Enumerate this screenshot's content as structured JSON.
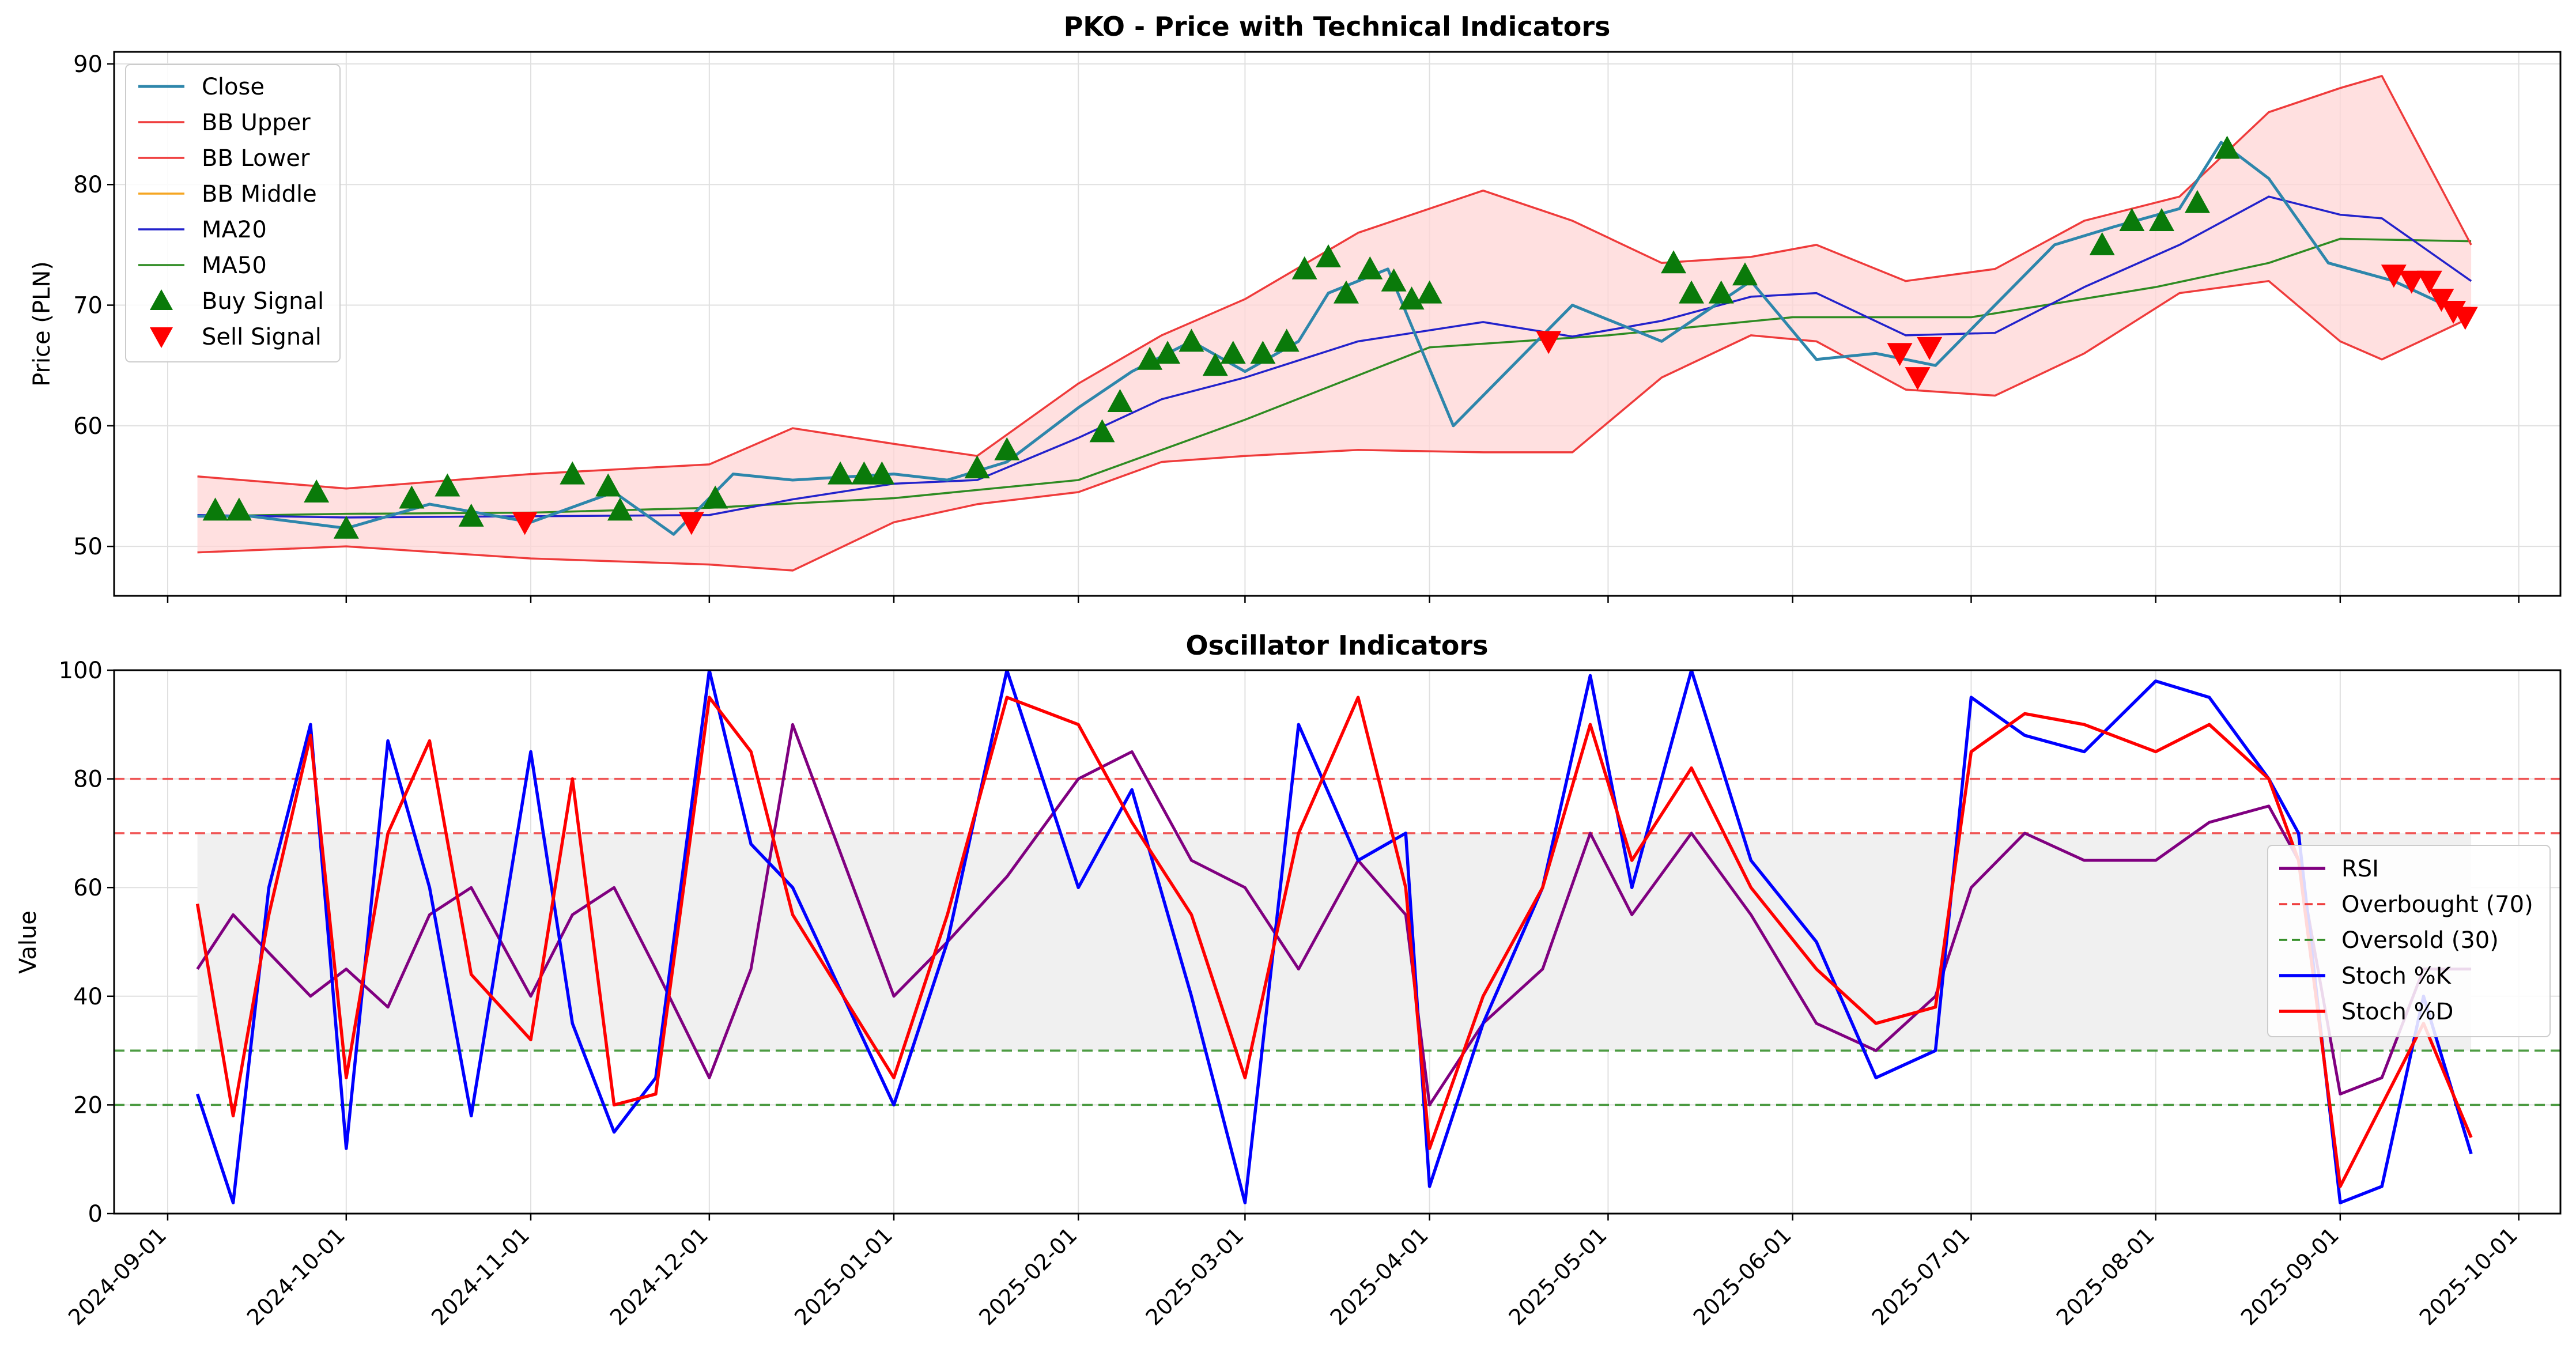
{
  "chart_data": [
    {
      "type": "line",
      "title": "PKO - Price with Technical Indicators",
      "xlabel": "",
      "ylabel": "Price (PLN)",
      "ylim": [
        45.9,
        91.0
      ],
      "yticks": [
        50,
        60,
        70,
        80,
        90
      ],
      "xlim": [
        "2024-08-23",
        "2025-10-08"
      ],
      "xticks": [
        "2024-09-01",
        "2024-10-01",
        "2024-11-01",
        "2024-12-01",
        "2025-01-01",
        "2025-02-01",
        "2025-03-01",
        "2025-04-01",
        "2025-05-01",
        "2025-06-01",
        "2025-07-01",
        "2025-08-01",
        "2025-09-01",
        "2025-10-01"
      ],
      "grid": true,
      "legend_position": "upper left",
      "series_style": {
        "Close": {
          "color": "#2e86ab"
        },
        "BB Upper": {
          "color": "#ef3b3b"
        },
        "BB Lower": {
          "color": "#ef3b3b"
        },
        "BB Middle": {
          "color": "#f5a623"
        },
        "MA20": {
          "color": "#2222cc"
        },
        "MA50": {
          "color": "#2e8b22"
        },
        "Buy Signal": {
          "color": "#0a7a0a"
        },
        "Sell Signal": {
          "color": "#ff0000"
        },
        "Band Fill": {
          "color": "#ffd6d6"
        }
      },
      "legend": [
        "Close",
        "BB Upper",
        "BB Lower",
        "BB Middle",
        "MA20",
        "MA50",
        "Buy Signal",
        "Sell Signal"
      ],
      "series": [
        {
          "name": "Close",
          "x": [
            "2024-09-06",
            "2024-09-15",
            "2024-10-01",
            "2024-10-15",
            "2024-11-01",
            "2024-11-15",
            "2024-11-25",
            "2024-12-05",
            "2024-12-15",
            "2025-01-01",
            "2025-01-10",
            "2025-01-20",
            "2025-02-01",
            "2025-02-10",
            "2025-02-20",
            "2025-03-01",
            "2025-03-10",
            "2025-03-15",
            "2025-03-25",
            "2025-04-05",
            "2025-04-15",
            "2025-04-25",
            "2025-05-10",
            "2025-05-25",
            "2025-06-05",
            "2025-06-15",
            "2025-06-25",
            "2025-07-05",
            "2025-07-15",
            "2025-07-25",
            "2025-08-05",
            "2025-08-12",
            "2025-08-20",
            "2025-08-30",
            "2025-09-10",
            "2025-09-23"
          ],
          "y": [
            52.5,
            52.5,
            51.5,
            53.5,
            52.0,
            54.5,
            51.0,
            56.0,
            55.5,
            56.0,
            55.5,
            57.0,
            61.5,
            64.5,
            67.0,
            64.5,
            67.0,
            71.0,
            73.0,
            60.0,
            65.0,
            70.0,
            67.0,
            72.0,
            65.5,
            66.0,
            65.0,
            70.0,
            75.0,
            76.5,
            78.0,
            83.5,
            80.5,
            73.5,
            72.0,
            69.0
          ]
        },
        {
          "name": "BB Upper",
          "x": [
            "2024-09-06",
            "2024-10-01",
            "2024-11-01",
            "2024-12-01",
            "2024-12-15",
            "2025-01-01",
            "2025-01-15",
            "2025-02-01",
            "2025-02-15",
            "2025-03-01",
            "2025-03-20",
            "2025-04-10",
            "2025-04-25",
            "2025-05-10",
            "2025-05-25",
            "2025-06-05",
            "2025-06-20",
            "2025-07-05",
            "2025-07-20",
            "2025-08-05",
            "2025-08-20",
            "2025-09-01",
            "2025-09-08",
            "2025-09-23"
          ],
          "y": [
            55.8,
            54.8,
            56.0,
            56.8,
            59.8,
            58.5,
            57.5,
            63.5,
            67.5,
            70.5,
            76.0,
            79.5,
            77.0,
            73.5,
            74.0,
            75.0,
            72.0,
            73.0,
            77.0,
            79.0,
            86.0,
            88.0,
            89.0,
            75.0
          ]
        },
        {
          "name": "BB Lower",
          "x": [
            "2024-09-06",
            "2024-10-01",
            "2024-11-01",
            "2024-12-01",
            "2024-12-15",
            "2025-01-01",
            "2025-01-15",
            "2025-02-01",
            "2025-02-15",
            "2025-03-01",
            "2025-03-20",
            "2025-04-10",
            "2025-04-25",
            "2025-05-10",
            "2025-05-25",
            "2025-06-05",
            "2025-06-20",
            "2025-07-05",
            "2025-07-20",
            "2025-08-05",
            "2025-08-20",
            "2025-09-01",
            "2025-09-08",
            "2025-09-23"
          ],
          "y": [
            49.5,
            50.0,
            49.0,
            48.5,
            48.0,
            52.0,
            53.5,
            54.5,
            57.0,
            57.5,
            58.0,
            57.8,
            57.8,
            64.0,
            67.5,
            67.0,
            63.0,
            62.5,
            66.0,
            71.0,
            72.0,
            67.0,
            65.5,
            69.0
          ]
        },
        {
          "name": "BB Middle",
          "x": [
            "2024-09-06",
            "2024-10-01",
            "2024-11-01",
            "2024-12-01",
            "2024-12-15",
            "2025-01-01",
            "2025-01-15",
            "2025-02-01",
            "2025-02-15",
            "2025-03-01",
            "2025-03-20",
            "2025-04-10",
            "2025-04-25",
            "2025-05-10",
            "2025-05-25",
            "2025-06-05",
            "2025-06-20",
            "2025-07-05",
            "2025-07-20",
            "2025-08-05",
            "2025-08-20",
            "2025-09-01",
            "2025-09-08",
            "2025-09-23"
          ],
          "y": [
            52.6,
            52.4,
            52.5,
            52.6,
            53.9,
            55.2,
            55.5,
            59.0,
            62.2,
            64.0,
            67.0,
            68.6,
            67.4,
            68.7,
            70.7,
            71.0,
            67.5,
            67.7,
            71.5,
            75.0,
            79.0,
            77.5,
            77.2,
            72.0
          ]
        },
        {
          "name": "MA20",
          "x": [
            "2024-09-06",
            "2024-10-01",
            "2024-11-01",
            "2024-12-01",
            "2024-12-15",
            "2025-01-01",
            "2025-01-15",
            "2025-02-01",
            "2025-02-15",
            "2025-03-01",
            "2025-03-20",
            "2025-04-10",
            "2025-04-25",
            "2025-05-10",
            "2025-05-25",
            "2025-06-05",
            "2025-06-20",
            "2025-07-05",
            "2025-07-20",
            "2025-08-05",
            "2025-08-20",
            "2025-09-01",
            "2025-09-08",
            "2025-09-23"
          ],
          "y": [
            52.6,
            52.4,
            52.5,
            52.6,
            53.9,
            55.2,
            55.5,
            59.0,
            62.2,
            64.0,
            67.0,
            68.6,
            67.4,
            68.7,
            70.7,
            71.0,
            67.5,
            67.7,
            71.5,
            75.0,
            79.0,
            77.5,
            77.2,
            72.0
          ]
        },
        {
          "name": "MA50",
          "x": [
            "2024-09-06",
            "2024-10-01",
            "2024-11-01",
            "2024-12-01",
            "2025-01-01",
            "2025-02-01",
            "2025-03-01",
            "2025-04-01",
            "2025-05-01",
            "2025-06-01",
            "2025-07-01",
            "2025-08-01",
            "2025-08-20",
            "2025-09-01",
            "2025-09-23"
          ],
          "y": [
            52.5,
            52.7,
            52.8,
            53.2,
            54.0,
            55.5,
            60.5,
            66.5,
            67.5,
            69.0,
            69.0,
            71.5,
            73.5,
            75.5,
            75.3
          ]
        },
        {
          "name": "Buy Signal",
          "x": [
            "2024-09-09",
            "2024-09-13",
            "2024-09-26",
            "2024-10-01",
            "2024-10-12",
            "2024-10-18",
            "2024-10-22",
            "2024-11-08",
            "2024-11-14",
            "2024-11-16",
            "2024-12-02",
            "2024-12-23",
            "2024-12-27",
            "2024-12-30",
            "2025-01-15",
            "2025-01-20",
            "2025-02-05",
            "2025-02-08",
            "2025-02-13",
            "2025-02-16",
            "2025-02-20",
            "2025-02-24",
            "2025-02-27",
            "2025-03-04",
            "2025-03-08",
            "2025-03-11",
            "2025-03-15",
            "2025-03-18",
            "2025-03-22",
            "2025-03-26",
            "2025-03-29",
            "2025-04-01",
            "2025-05-12",
            "2025-05-15",
            "2025-05-20",
            "2025-05-24",
            "2025-07-23",
            "2025-07-28",
            "2025-08-02",
            "2025-08-08",
            "2025-08-13"
          ],
          "y": [
            53,
            53,
            54.5,
            51.5,
            54,
            55,
            52.5,
            56,
            55,
            53,
            54,
            56,
            56,
            56,
            56.5,
            58,
            59.5,
            62,
            65.5,
            66,
            67,
            65,
            66,
            66,
            67,
            73,
            74,
            71,
            73,
            72,
            70.5,
            71,
            73.5,
            71,
            71,
            72.5,
            75,
            77,
            77,
            78.5,
            83
          ]
        },
        {
          "name": "Sell Signal",
          "x": [
            "2024-10-31",
            "2024-11-28",
            "2025-04-21",
            "2025-06-19",
            "2025-06-22",
            "2025-06-24",
            "2025-09-10",
            "2025-09-13",
            "2025-09-16",
            "2025-09-18",
            "2025-09-20",
            "2025-09-22"
          ],
          "y": [
            52,
            52,
            67,
            66,
            64,
            66.5,
            72.5,
            72,
            72,
            70.5,
            69.5,
            69
          ]
        }
      ]
    },
    {
      "type": "line",
      "title": "Oscillator Indicators",
      "xlabel": "",
      "ylabel": "Value",
      "ylim": [
        0,
        100
      ],
      "yticks": [
        0,
        20,
        40,
        60,
        80,
        100
      ],
      "xlim": [
        "2024-08-23",
        "2025-10-08"
      ],
      "grid": true,
      "legend_position": "center right",
      "reference_lines": [
        {
          "name": "Overbought (70)",
          "y": 70,
          "color": "#ef3b3b",
          "style": "dashed"
        },
        {
          "name": "Oversold (30)",
          "y": 30,
          "color": "#2e8b22",
          "style": "dashed"
        },
        {
          "name": "",
          "y": 80,
          "color": "#ef3b3b",
          "style": "dashed"
        },
        {
          "name": "",
          "y": 20,
          "color": "#2e8b22",
          "style": "dashed"
        }
      ],
      "shaded_band": {
        "from": 30,
        "to": 70,
        "x_from": "2024-09-06",
        "x_to": "2025-09-23",
        "color": "#f0f0f0"
      },
      "series_style": {
        "RSI": {
          "color": "#800080"
        },
        "Stoch %K": {
          "color": "#0000ff"
        },
        "Stoch %D": {
          "color": "#ff0000"
        }
      },
      "legend": [
        "RSI",
        "Overbought (70)",
        "Oversold (30)",
        "Stoch %K",
        "Stoch %D"
      ],
      "series": [
        {
          "name": "RSI",
          "x": [
            "2024-09-06",
            "2024-09-12",
            "2024-09-18",
            "2024-09-25",
            "2024-10-01",
            "2024-10-08",
            "2024-10-15",
            "2024-10-22",
            "2024-11-01",
            "2024-11-08",
            "2024-11-15",
            "2024-11-22",
            "2024-12-01",
            "2024-12-08",
            "2024-12-15",
            "2025-01-01",
            "2025-01-10",
            "2025-01-20",
            "2025-02-01",
            "2025-02-10",
            "2025-02-20",
            "2025-03-01",
            "2025-03-10",
            "2025-03-20",
            "2025-03-28",
            "2025-04-01",
            "2025-04-10",
            "2025-04-20",
            "2025-04-28",
            "2025-05-05",
            "2025-05-15",
            "2025-05-25",
            "2025-06-05",
            "2025-06-15",
            "2025-06-25",
            "2025-07-01",
            "2025-07-10",
            "2025-07-20",
            "2025-08-01",
            "2025-08-10",
            "2025-08-20",
            "2025-08-25",
            "2025-09-01",
            "2025-09-08",
            "2025-09-15",
            "2025-09-23"
          ],
          "y": [
            45,
            55,
            48,
            40,
            45,
            38,
            55,
            60,
            40,
            55,
            60,
            45,
            25,
            45,
            90,
            40,
            50,
            62,
            80,
            85,
            65,
            60,
            45,
            65,
            55,
            20,
            35,
            45,
            70,
            55,
            70,
            55,
            35,
            30,
            40,
            60,
            70,
            65,
            65,
            72,
            75,
            65,
            22,
            25,
            45,
            45
          ]
        },
        {
          "name": "Stoch %K",
          "x": [
            "2024-09-06",
            "2024-09-12",
            "2024-09-18",
            "2024-09-25",
            "2024-10-01",
            "2024-10-08",
            "2024-10-15",
            "2024-10-22",
            "2024-11-01",
            "2024-11-08",
            "2024-11-15",
            "2024-11-22",
            "2024-12-01",
            "2024-12-08",
            "2024-12-15",
            "2025-01-01",
            "2025-01-10",
            "2025-01-20",
            "2025-02-01",
            "2025-02-10",
            "2025-02-20",
            "2025-03-01",
            "2025-03-10",
            "2025-03-20",
            "2025-03-28",
            "2025-04-01",
            "2025-04-10",
            "2025-04-20",
            "2025-04-28",
            "2025-05-05",
            "2025-05-15",
            "2025-05-25",
            "2025-06-05",
            "2025-06-15",
            "2025-06-25",
            "2025-07-01",
            "2025-07-10",
            "2025-07-20",
            "2025-08-01",
            "2025-08-10",
            "2025-08-20",
            "2025-08-25",
            "2025-09-01",
            "2025-09-08",
            "2025-09-15",
            "2025-09-23"
          ],
          "y": [
            22,
            2,
            60,
            90,
            12,
            87,
            60,
            18,
            85,
            35,
            15,
            25,
            100,
            68,
            60,
            20,
            50,
            100,
            60,
            78,
            40,
            2,
            90,
            65,
            70,
            5,
            35,
            60,
            99,
            60,
            100,
            65,
            50,
            25,
            30,
            95,
            88,
            85,
            98,
            95,
            80,
            70,
            2,
            5,
            40,
            11
          ]
        },
        {
          "name": "Stoch %D",
          "x": [
            "2024-09-06",
            "2024-09-12",
            "2024-09-18",
            "2024-09-25",
            "2024-10-01",
            "2024-10-08",
            "2024-10-15",
            "2024-10-22",
            "2024-11-01",
            "2024-11-08",
            "2024-11-15",
            "2024-11-22",
            "2024-12-01",
            "2024-12-08",
            "2024-12-15",
            "2025-01-01",
            "2025-01-10",
            "2025-01-20",
            "2025-02-01",
            "2025-02-10",
            "2025-02-20",
            "2025-03-01",
            "2025-03-10",
            "2025-03-20",
            "2025-03-28",
            "2025-04-01",
            "2025-04-10",
            "2025-04-20",
            "2025-04-28",
            "2025-05-05",
            "2025-05-15",
            "2025-05-25",
            "2025-06-05",
            "2025-06-15",
            "2025-06-25",
            "2025-07-01",
            "2025-07-10",
            "2025-07-20",
            "2025-08-01",
            "2025-08-10",
            "2025-08-20",
            "2025-08-25",
            "2025-09-01",
            "2025-09-08",
            "2025-09-15",
            "2025-09-23"
          ],
          "y": [
            57,
            18,
            55,
            88,
            25,
            70,
            87,
            44,
            32,
            80,
            20,
            22,
            95,
            85,
            55,
            25,
            55,
            95,
            90,
            72,
            55,
            25,
            70,
            95,
            60,
            12,
            40,
            60,
            90,
            65,
            82,
            60,
            45,
            35,
            38,
            85,
            92,
            90,
            85,
            90,
            80,
            65,
            5,
            20,
            35,
            14
          ]
        }
      ]
    }
  ]
}
